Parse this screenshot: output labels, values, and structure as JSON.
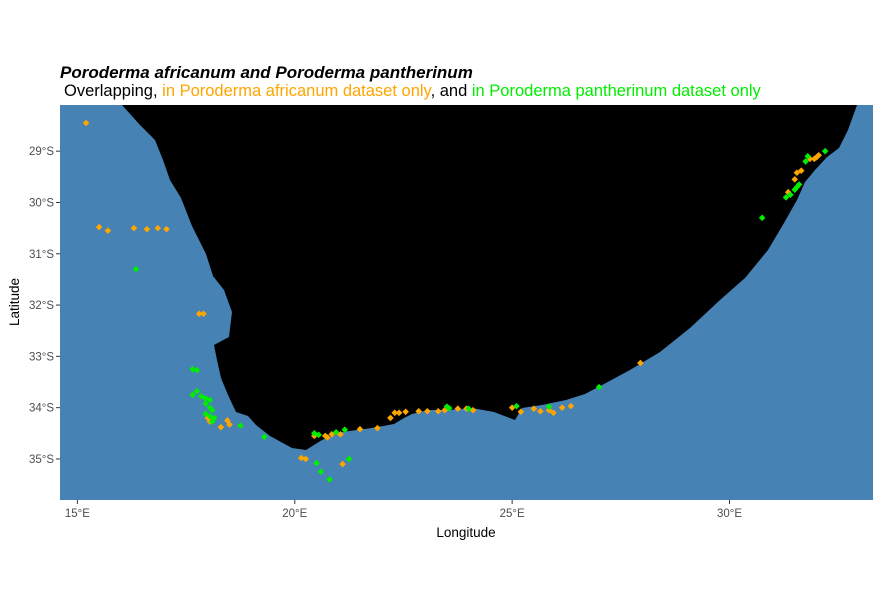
{
  "map": {
    "title": "Poroderma africanum and Poroderma pantherinum",
    "subtitle": {
      "lead": "Overlapping",
      "sep1": ", ",
      "africanum_only": "in Poroderma africanum dataset only",
      "sep2": ", and ",
      "pantherinum_only": "in Poroderma pantherinum dataset only"
    },
    "xlabel": "Longitude",
    "ylabel": "Latitude",
    "xticks": [
      "15°E",
      "20°E",
      "25°E",
      "30°E"
    ],
    "yticks": [
      "29°S",
      "30°S",
      "31°S",
      "32°S",
      "33°S",
      "34°S",
      "35°S"
    ],
    "colors": {
      "ocean": "#4682b4",
      "land": "#000000",
      "africanum_only": "#ffa500",
      "pantherinum_only": "#00ee00",
      "overlapping": "#000000"
    }
  },
  "chart_data": {
    "type": "scatter",
    "xlim": [
      14.6,
      33.3
    ],
    "ylim": [
      -35.8,
      -28.1
    ],
    "series": [
      {
        "name": "in Poroderma africanum dataset only",
        "color": "#ffa500",
        "points": [
          [
            15.2,
            -28.45
          ],
          [
            15.5,
            -30.48
          ],
          [
            15.7,
            -30.55
          ],
          [
            16.3,
            -30.5
          ],
          [
            16.6,
            -30.52
          ],
          [
            16.85,
            -30.5
          ],
          [
            17.05,
            -30.52
          ],
          [
            17.8,
            -32.17
          ],
          [
            17.9,
            -32.17
          ],
          [
            18.0,
            -34.2
          ],
          [
            18.05,
            -34.27
          ],
          [
            18.3,
            -34.38
          ],
          [
            18.45,
            -34.25
          ],
          [
            18.5,
            -34.33
          ],
          [
            20.15,
            -34.98
          ],
          [
            20.25,
            -35.0
          ],
          [
            20.45,
            -34.55
          ],
          [
            20.7,
            -34.55
          ],
          [
            20.75,
            -34.58
          ],
          [
            20.85,
            -34.52
          ],
          [
            21.05,
            -34.52
          ],
          [
            21.1,
            -35.1
          ],
          [
            21.5,
            -34.42
          ],
          [
            21.9,
            -34.4
          ],
          [
            22.2,
            -34.2
          ],
          [
            22.3,
            -34.1
          ],
          [
            22.4,
            -34.1
          ],
          [
            22.55,
            -34.08
          ],
          [
            22.85,
            -34.07
          ],
          [
            23.05,
            -34.07
          ],
          [
            23.3,
            -34.07
          ],
          [
            23.45,
            -34.05
          ],
          [
            23.75,
            -34.02
          ],
          [
            23.95,
            -34.02
          ],
          [
            24.1,
            -34.05
          ],
          [
            25.0,
            -34.0
          ],
          [
            25.2,
            -34.08
          ],
          [
            25.5,
            -34.02
          ],
          [
            25.65,
            -34.07
          ],
          [
            25.85,
            -34.05
          ],
          [
            25.95,
            -34.1
          ],
          [
            26.15,
            -34.0
          ],
          [
            26.35,
            -33.97
          ],
          [
            27.95,
            -33.13
          ],
          [
            31.35,
            -29.8
          ],
          [
            31.5,
            -29.55
          ],
          [
            31.55,
            -29.42
          ],
          [
            31.65,
            -29.38
          ],
          [
            31.85,
            -29.15
          ],
          [
            31.95,
            -29.15
          ],
          [
            32.0,
            -29.12
          ],
          [
            32.05,
            -29.08
          ]
        ]
      },
      {
        "name": "in Poroderma pantherinum dataset only",
        "color": "#00ee00",
        "points": [
          [
            16.35,
            -31.3
          ],
          [
            17.65,
            -33.25
          ],
          [
            17.75,
            -33.27
          ],
          [
            17.65,
            -33.75
          ],
          [
            17.75,
            -33.68
          ],
          [
            17.85,
            -33.78
          ],
          [
            17.95,
            -33.82
          ],
          [
            18.05,
            -33.85
          ],
          [
            17.95,
            -33.92
          ],
          [
            18.05,
            -34.0
          ],
          [
            18.1,
            -34.05
          ],
          [
            17.95,
            -34.12
          ],
          [
            18.05,
            -34.17
          ],
          [
            18.15,
            -34.2
          ],
          [
            18.1,
            -34.27
          ],
          [
            18.75,
            -34.35
          ],
          [
            19.3,
            -34.57
          ],
          [
            20.45,
            -34.5
          ],
          [
            20.55,
            -34.53
          ],
          [
            20.5,
            -35.08
          ],
          [
            20.6,
            -35.25
          ],
          [
            20.8,
            -35.4
          ],
          [
            20.95,
            -34.48
          ],
          [
            21.15,
            -34.43
          ],
          [
            21.25,
            -35.0
          ],
          [
            23.5,
            -33.98
          ],
          [
            23.55,
            -34.01
          ],
          [
            24.0,
            -34.02
          ],
          [
            25.1,
            -33.97
          ],
          [
            25.85,
            -33.98
          ],
          [
            27.0,
            -33.6
          ],
          [
            30.75,
            -30.3
          ],
          [
            31.3,
            -29.9
          ],
          [
            31.4,
            -29.85
          ],
          [
            31.5,
            -29.75
          ],
          [
            31.55,
            -29.7
          ],
          [
            31.6,
            -29.65
          ],
          [
            31.75,
            -29.2
          ],
          [
            31.8,
            -29.1
          ],
          [
            32.2,
            -29.0
          ]
        ]
      }
    ]
  }
}
